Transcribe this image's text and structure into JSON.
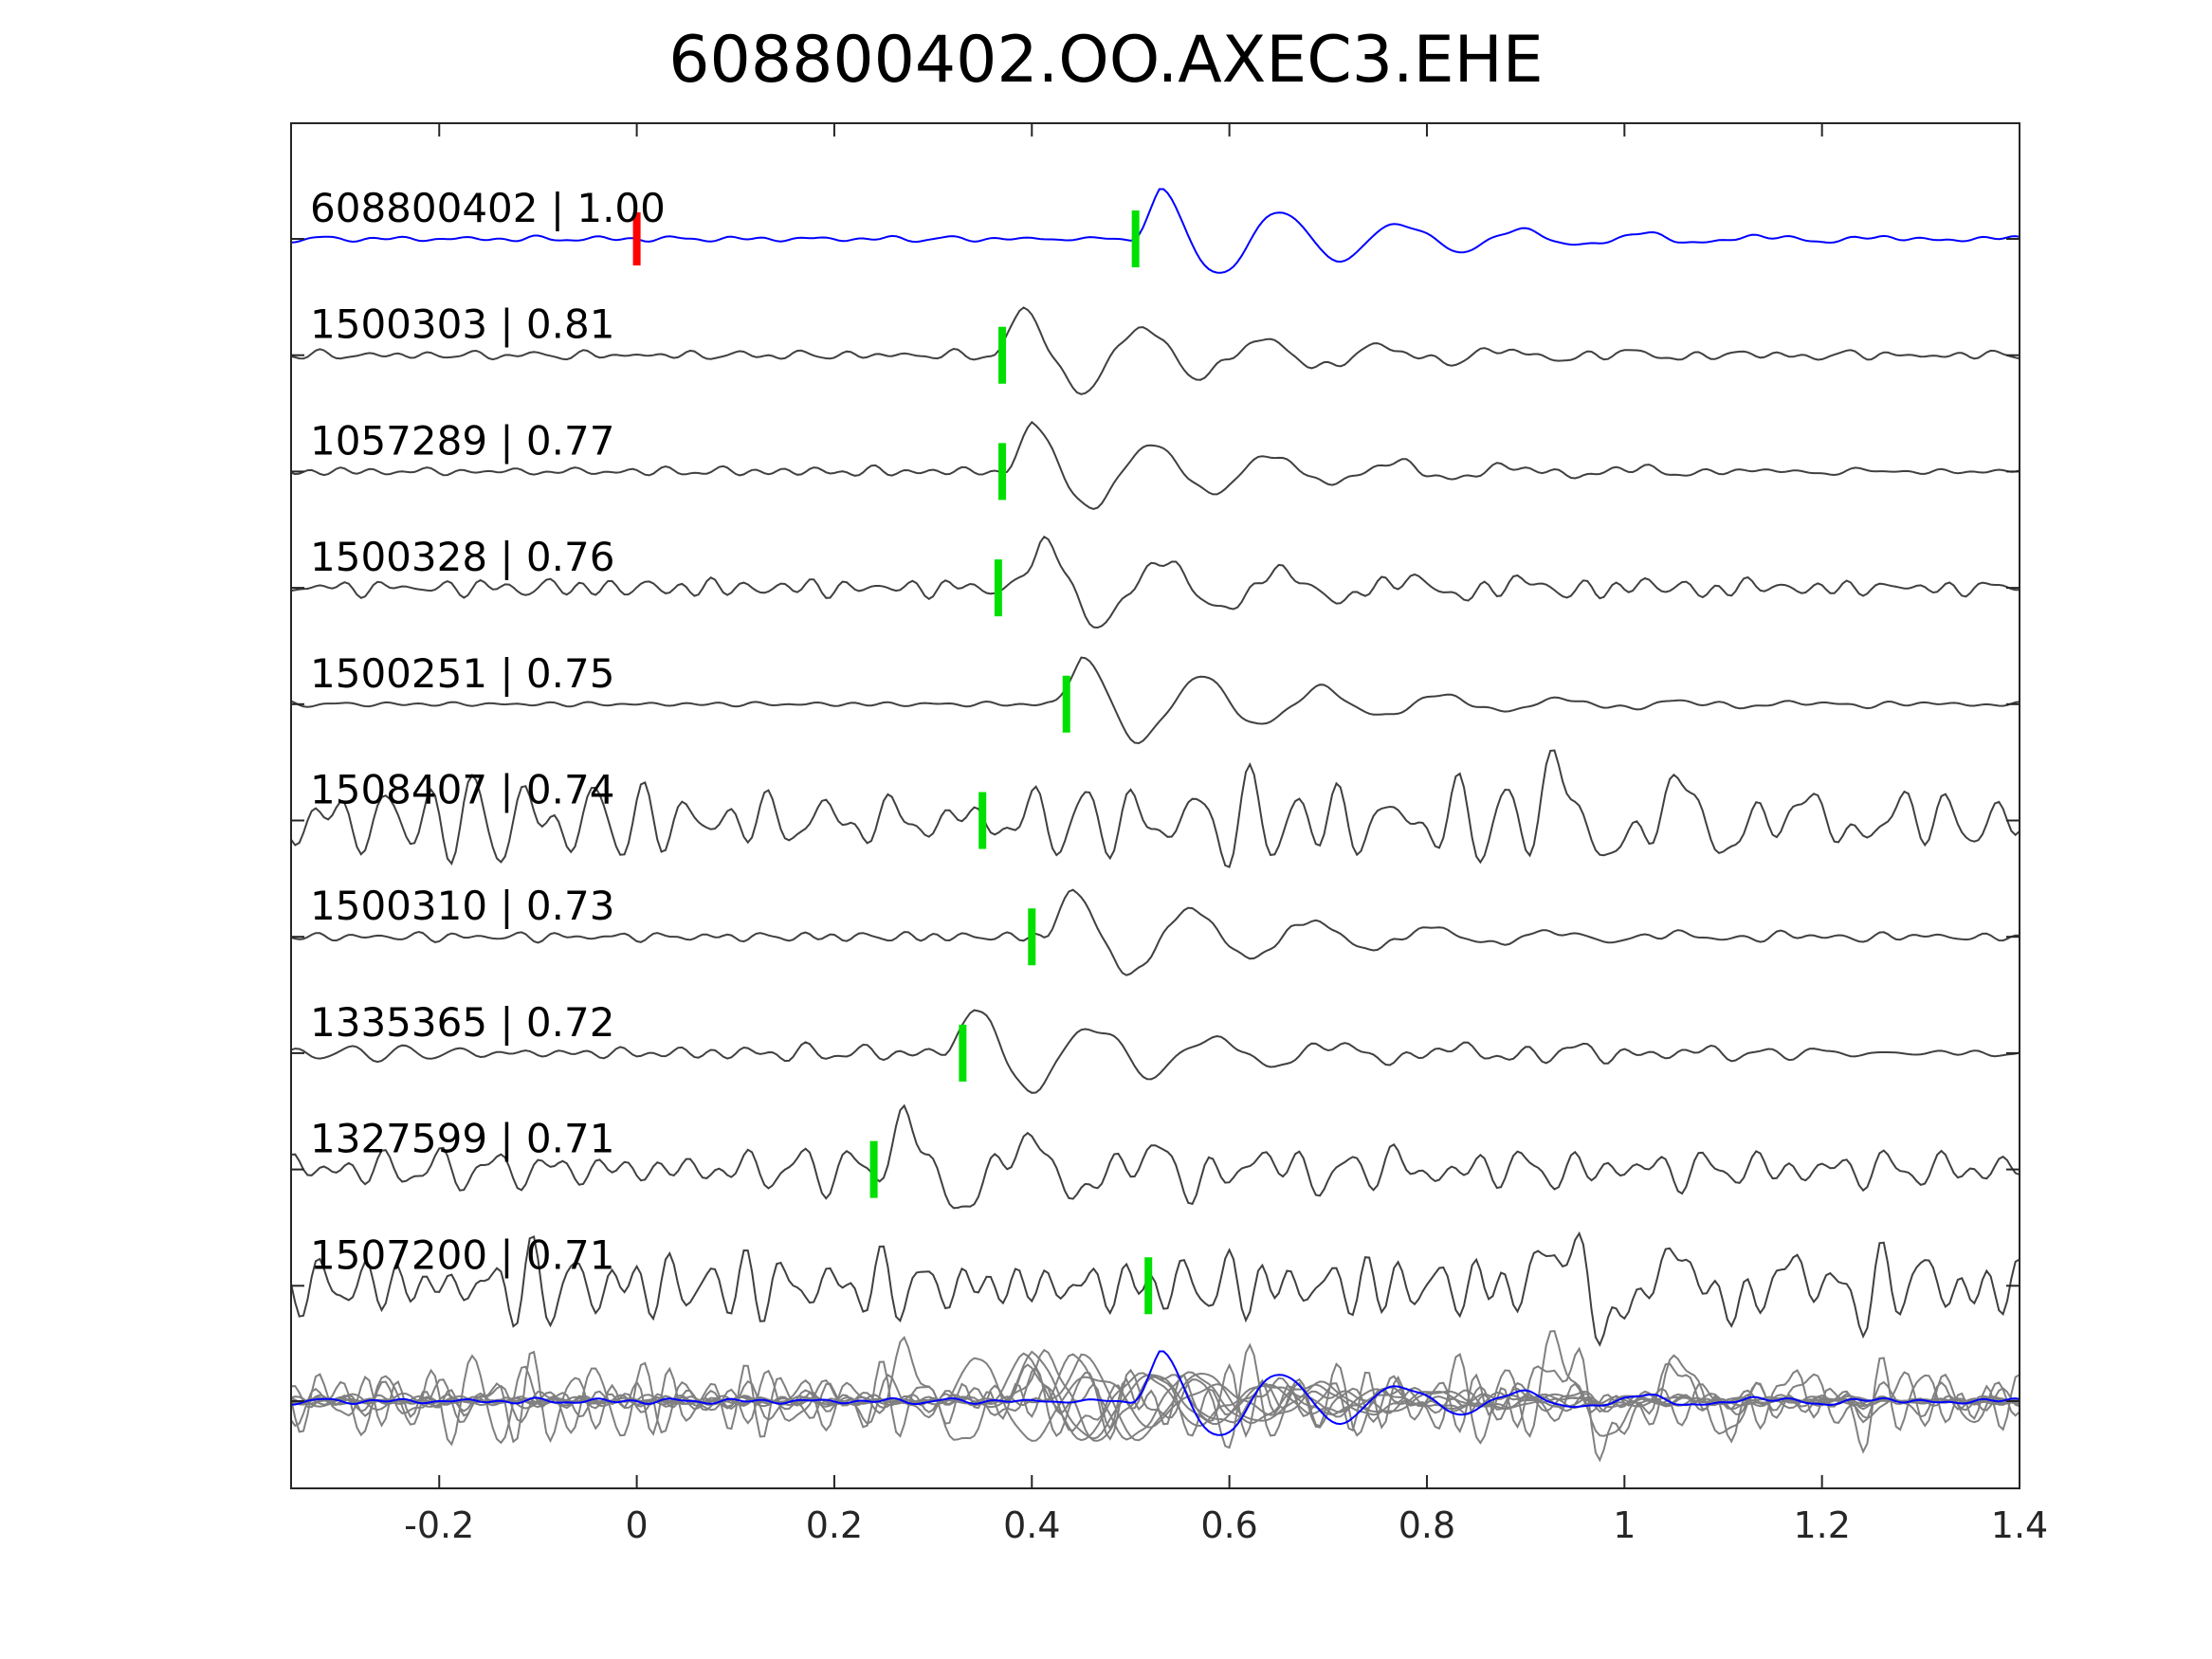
{
  "chart_data": {
    "type": "line",
    "title": "608800402.OO.AXEC3.EHE",
    "xlim": [
      -0.35,
      1.4
    ],
    "x_ticks": [
      -0.2,
      0,
      0.2,
      0.4,
      0.6,
      0.8,
      1,
      1.2,
      1.4
    ],
    "x_tick_labels": [
      "-0.2",
      "0",
      "0.2",
      "0.4",
      "0.6",
      "0.8",
      "1",
      "1.2",
      "1.4"
    ],
    "grid": false,
    "colors": {
      "template": "#0000ff",
      "trace": "#404040",
      "stack": "#808080",
      "origin_marker": "#ff0000",
      "pick_marker": "#00e000"
    },
    "traces": [
      {
        "label": "608800402 | 1.00",
        "id": "608800402",
        "cc": 1.0,
        "color": "#0000ff",
        "pick": 0.505,
        "origin": 0.0,
        "onset": 0.5,
        "seed": 11,
        "noise": 0.07
      },
      {
        "label": "1500303 | 0.81",
        "id": "1500303",
        "cc": 0.81,
        "pick": 0.37,
        "onset": 0.36,
        "seed": 23,
        "noise": 0.12
      },
      {
        "label": "1057289 | 0.77",
        "id": "1057289",
        "cc": 0.77,
        "pick": 0.37,
        "onset": 0.37,
        "seed": 37,
        "noise": 0.13
      },
      {
        "label": "1500328 | 0.76",
        "id": "1500328",
        "cc": 0.76,
        "pick": 0.366,
        "onset": 0.38,
        "seed": 41,
        "noise": 0.15
      },
      {
        "label": "1500251 | 0.75",
        "id": "1500251",
        "cc": 0.75,
        "pick": 0.435,
        "onset": 0.42,
        "seed": 53,
        "noise": 0.1
      },
      {
        "label": "1508407 | 0.74",
        "id": "1508407",
        "cc": 0.74,
        "pick": 0.35,
        "onset": 0.9,
        "seed": 67,
        "noise": 0.85
      },
      {
        "label": "1500310 | 0.73",
        "id": "1500310",
        "cc": 0.73,
        "pick": 0.4,
        "onset": 0.41,
        "seed": 71,
        "noise": 0.1
      },
      {
        "label": "1335365 | 0.72",
        "id": "1335365",
        "cc": 0.72,
        "pick": 0.33,
        "onset": 0.31,
        "seed": 83,
        "noise": 0.14
      },
      {
        "label": "1327599 | 0.71",
        "id": "1327599",
        "cc": 0.71,
        "pick": 0.24,
        "onset": 0.24,
        "seed": 97,
        "noise": 0.55
      },
      {
        "label": "1507200 | 0.71",
        "id": "1507200",
        "cc": 0.71,
        "pick": 0.518,
        "onset": 0.9,
        "seed": 101,
        "noise": 0.75
      }
    ]
  }
}
